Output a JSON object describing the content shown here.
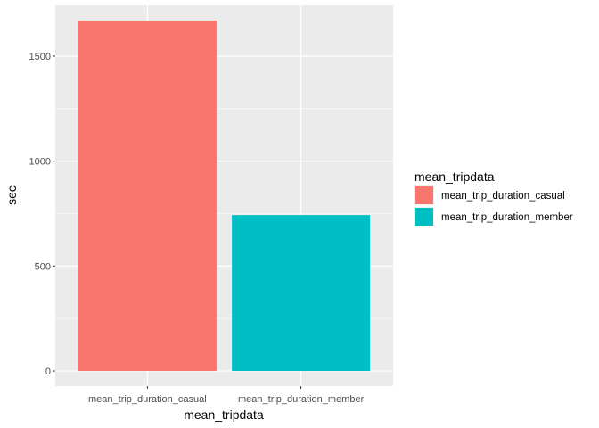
{
  "chart_data": {
    "type": "bar",
    "categories": [
      "mean_trip_duration_casual",
      "mean_trip_duration_member"
    ],
    "values": [
      1670,
      743
    ],
    "xlabel": "mean_tripdata",
    "ylabel": "sec",
    "ylim": [
      -72,
      1742
    ],
    "yticks": [
      0,
      500,
      1000,
      1500
    ],
    "ytick_labels": [
      "0",
      "500",
      "1000",
      "1500"
    ],
    "grid": true,
    "legend": {
      "title": "mean_tripdata",
      "placement": "right",
      "entries": [
        "mean_trip_duration_casual",
        "mean_trip_duration_member"
      ]
    },
    "colors": [
      "#F8766D",
      "#00BFC4"
    ],
    "panel_background": "#EBEBEB",
    "grid_color": "#FFFFFF"
  }
}
